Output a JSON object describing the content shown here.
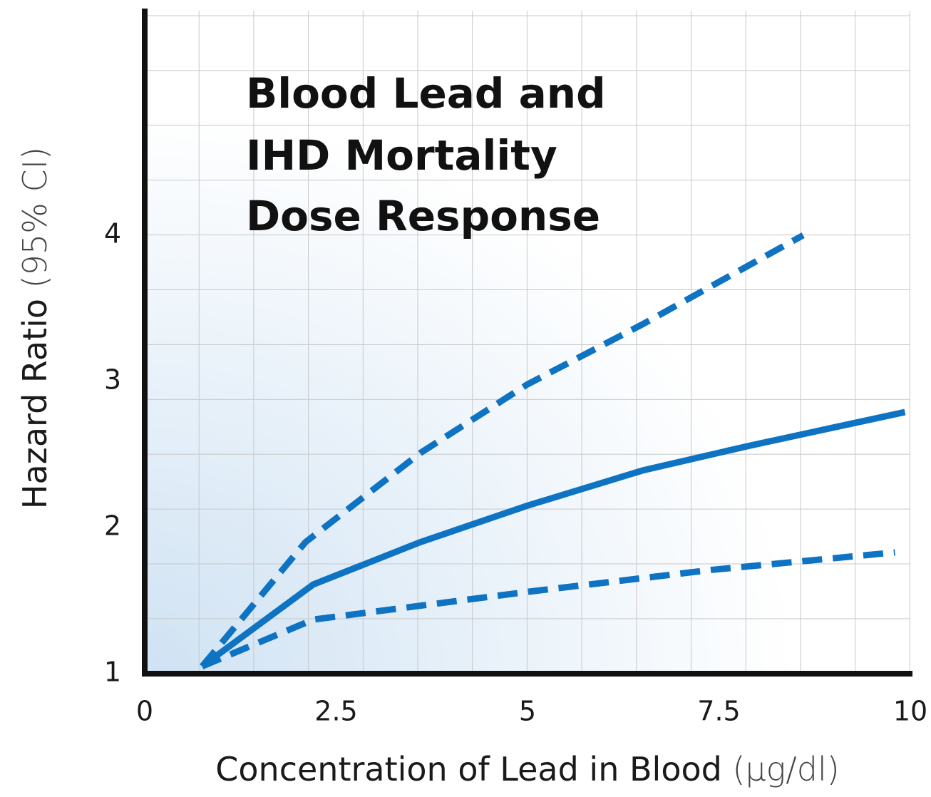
{
  "chart_data": {
    "type": "line",
    "title": [
      "Blood Lead and",
      "IHD Mortality",
      "Dose Response"
    ],
    "xlabel": "Concentration of Lead in Blood",
    "xlabel_unit": "(µg/dl)",
    "ylabel": "Hazard Ratio",
    "ylabel_unit": "(95% CI)",
    "xlim": [
      0,
      10
    ],
    "ylim": [
      1,
      5.5
    ],
    "xticks": [
      0,
      2.5,
      5,
      7.5,
      10
    ],
    "yticks": [
      1,
      2,
      3,
      4
    ],
    "series": [
      {
        "color": "#0e73c2",
        "dashed": false,
        "x": [
          0.75,
          2.2,
          3.6,
          5,
          6.5,
          7.9,
          9.93
        ],
        "values": [
          1.05,
          1.61,
          1.9,
          2.15,
          2.39,
          2.56,
          2.79
        ]
      },
      {
        "color": "#0e73c2",
        "dashed": true,
        "x": [
          0.75,
          2.1,
          3.6,
          5,
          6.5,
          8.6
        ],
        "values": [
          1.05,
          1.9,
          2.51,
          2.98,
          3.39,
          4.0
        ]
      },
      {
        "color": "#0e73c2",
        "dashed": true,
        "x": [
          0.75,
          2.2,
          5,
          7.4,
          9.8
        ],
        "values": [
          1.05,
          1.37,
          1.56,
          1.71,
          1.83
        ]
      }
    ]
  }
}
